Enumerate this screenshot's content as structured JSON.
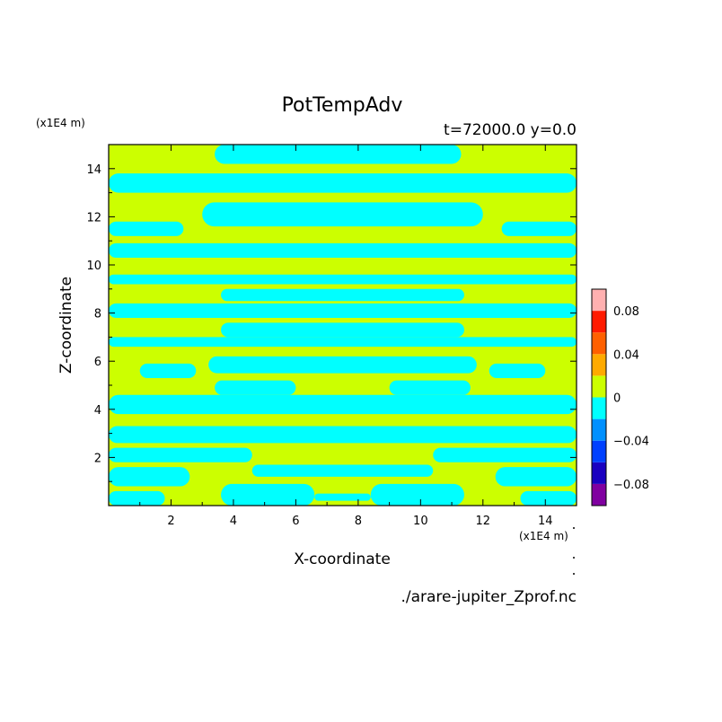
{
  "chart_data": {
    "type": "heatmap",
    "title": "PotTempAdv",
    "subtitle": "t=72000.0 y=0.0",
    "xlabel": "X-coordinate",
    "ylabel": "Z-coordinate",
    "x_unit": "(x1E4 m)",
    "y_unit": "(x1E4 m)",
    "source_file": "./arare-jupiter_Zprof.nc",
    "xlim": [
      0,
      15
    ],
    "ylim": [
      0,
      15
    ],
    "x_ticks": [
      2,
      4,
      6,
      8,
      10,
      12,
      14
    ],
    "y_ticks": [
      2,
      4,
      6,
      8,
      10,
      12,
      14
    ],
    "legend_position": "right",
    "colorbar": {
      "labels": [
        {
          "value": 0.08,
          "text": "0.08"
        },
        {
          "value": 0.04,
          "text": "0.04"
        },
        {
          "value": 0,
          "text": "0"
        },
        {
          "value": -0.04,
          "text": "−0.04"
        },
        {
          "value": -0.08,
          "text": "−0.08"
        }
      ],
      "levels": [
        {
          "from": -0.1,
          "to": -0.08,
          "color": "#8000a0"
        },
        {
          "from": -0.08,
          "to": -0.06,
          "color": "#1a00c0"
        },
        {
          "from": -0.06,
          "to": -0.04,
          "color": "#0040ff"
        },
        {
          "from": -0.04,
          "to": -0.02,
          "color": "#0090ff"
        },
        {
          "from": -0.02,
          "to": 0,
          "color": "#00ffff"
        },
        {
          "from": 0,
          "to": 0.02,
          "color": "#ccff00"
        },
        {
          "from": 0.02,
          "to": 0.04,
          "color": "#ffaa00"
        },
        {
          "from": 0.04,
          "to": 0.06,
          "color": "#ff6000"
        },
        {
          "from": 0.06,
          "to": 0.08,
          "color": "#ff1a00"
        },
        {
          "from": 0.08,
          "to": 0.1,
          "color": "#ffb0b0"
        }
      ]
    },
    "field": {
      "background_color": "#ccff00",
      "negative_color": "#00ffff",
      "regions": [
        {
          "x": [
            3.4,
            11.3
          ],
          "z": [
            14.2,
            15.0
          ]
        },
        {
          "x": [
            0,
            15
          ],
          "z": [
            13.0,
            13.8
          ]
        },
        {
          "x": [
            3.0,
            12.0
          ],
          "z": [
            11.6,
            12.6
          ]
        },
        {
          "x": [
            0,
            2.4
          ],
          "z": [
            11.2,
            11.8
          ]
        },
        {
          "x": [
            12.6,
            15
          ],
          "z": [
            11.2,
            11.8
          ]
        },
        {
          "x": [
            0,
            15
          ],
          "z": [
            10.3,
            10.9
          ]
        },
        {
          "x": [
            0,
            15
          ],
          "z": [
            9.2,
            9.6
          ]
        },
        {
          "x": [
            3.6,
            11.4
          ],
          "z": [
            8.5,
            9.0
          ]
        },
        {
          "x": [
            0,
            15
          ],
          "z": [
            7.8,
            8.4
          ]
        },
        {
          "x": [
            3.6,
            11.4
          ],
          "z": [
            7.0,
            7.6
          ]
        },
        {
          "x": [
            0,
            15
          ],
          "z": [
            6.6,
            7.0
          ]
        },
        {
          "x": [
            3.2,
            11.8
          ],
          "z": [
            5.5,
            6.2
          ]
        },
        {
          "x": [
            1.0,
            2.8
          ],
          "z": [
            5.3,
            5.9
          ]
        },
        {
          "x": [
            12.2,
            14.0
          ],
          "z": [
            5.3,
            5.9
          ]
        },
        {
          "x": [
            3.4,
            6.0
          ],
          "z": [
            4.6,
            5.2
          ]
        },
        {
          "x": [
            9.0,
            11.6
          ],
          "z": [
            4.6,
            5.2
          ]
        },
        {
          "x": [
            0,
            15
          ],
          "z": [
            3.8,
            4.6
          ]
        },
        {
          "x": [
            0,
            15
          ],
          "z": [
            2.6,
            3.3
          ]
        },
        {
          "x": [
            0,
            4.6
          ],
          "z": [
            1.8,
            2.4
          ]
        },
        {
          "x": [
            10.4,
            15
          ],
          "z": [
            1.8,
            2.4
          ]
        },
        {
          "x": [
            4.6,
            10.4
          ],
          "z": [
            1.2,
            1.7
          ]
        },
        {
          "x": [
            0,
            2.6
          ],
          "z": [
            0.8,
            1.6
          ]
        },
        {
          "x": [
            12.4,
            15
          ],
          "z": [
            0.8,
            1.6
          ]
        },
        {
          "x": [
            0,
            1.8
          ],
          "z": [
            0.0,
            0.6
          ]
        },
        {
          "x": [
            13.2,
            15
          ],
          "z": [
            0.0,
            0.6
          ]
        },
        {
          "x": [
            3.6,
            6.6
          ],
          "z": [
            0.0,
            0.9
          ]
        },
        {
          "x": [
            8.4,
            11.4
          ],
          "z": [
            0.0,
            0.9
          ]
        },
        {
          "x": [
            6.6,
            8.4
          ],
          "z": [
            0.2,
            0.5
          ]
        }
      ]
    }
  }
}
